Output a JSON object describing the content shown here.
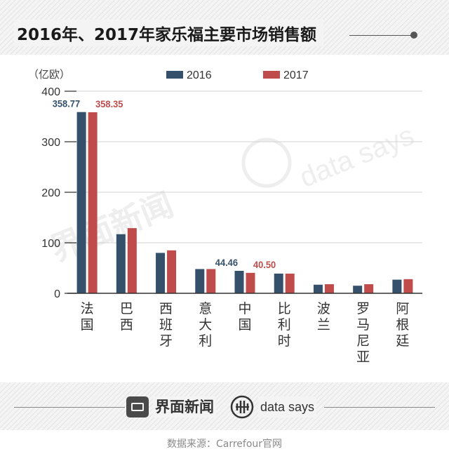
{
  "title": "2016年、2017年家乐福主要市场销售额",
  "unit": "（亿欧）",
  "watermark": {
    "brand": "界面新闻",
    "product": "data says"
  },
  "footer": {
    "brand": "界面新闻",
    "product": "data says",
    "source": "数据来源：Carrefour官网"
  },
  "colors": {
    "2016": "#34506b",
    "2017": "#c04b4b",
    "grid": "#d3d3d3",
    "axis": "#333333"
  },
  "chart_data": {
    "type": "bar",
    "title": "2016年、2017年家乐福主要市场销售额",
    "ylabel": "（亿欧）",
    "ylim": [
      0,
      400
    ],
    "yticks": [
      0,
      100,
      200,
      300,
      400
    ],
    "grid": true,
    "legend_position": "top",
    "categories": [
      "法国",
      "巴西",
      "西班牙",
      "意大利",
      "中国",
      "比利时",
      "波兰",
      "罗马尼亚",
      "阿根廷"
    ],
    "series": [
      {
        "name": "2016",
        "color": "#34506b",
        "values": [
          358.77,
          117,
          80,
          48,
          44.46,
          39,
          17,
          15,
          27
        ]
      },
      {
        "name": "2017",
        "color": "#c04b4b",
        "values": [
          358.35,
          129,
          85,
          48,
          40.5,
          39,
          18,
          18,
          28
        ]
      }
    ],
    "data_labels": [
      {
        "series": "2016",
        "category": "法国",
        "text": "358.77"
      },
      {
        "series": "2017",
        "category": "法国",
        "text": "358.35"
      },
      {
        "series": "2016",
        "category": "中国",
        "text": "44.46"
      },
      {
        "series": "2017",
        "category": "中国",
        "text": "40.50"
      }
    ]
  }
}
